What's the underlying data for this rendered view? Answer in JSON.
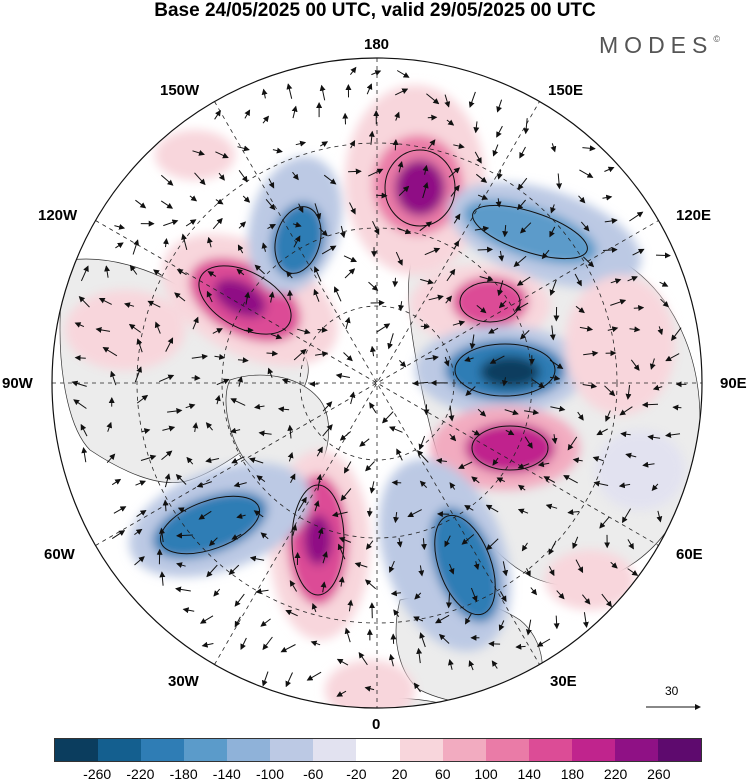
{
  "title": "Base 24/05/2025 00 UTC, valid 29/05/2025 00 UTC",
  "brand": "MODES",
  "brand_mark": "©",
  "longitude_labels": {
    "lon_180": "180",
    "lon_150e": "150E",
    "lon_120e": "120E",
    "lon_90e": "90E",
    "lon_60e": "60E",
    "lon_30e": "30E",
    "lon_0": "0",
    "lon_30w": "30W",
    "lon_60w": "60W",
    "lon_90w": "90W",
    "lon_120w": "120W",
    "lon_150w": "150W"
  },
  "reference_vector_label": "30",
  "colorbar": {
    "ticks": [
      "-260",
      "-220",
      "-180",
      "-140",
      "-100",
      "-60",
      "-20",
      "20",
      "60",
      "100",
      "140",
      "180",
      "220",
      "260"
    ],
    "colors": [
      "#0b3d5e",
      "#145f8f",
      "#2f7db5",
      "#5b9bca",
      "#8fb2d9",
      "#bcc9e4",
      "#e2e2f0",
      "#ffffff",
      "#f8d6dc",
      "#f2abc0",
      "#ea7ba7",
      "#dc4c96",
      "#c0248d",
      "#8f1185",
      "#5e0a6e"
    ]
  },
  "colors": {
    "land": "#ececec",
    "background": "#ffffff"
  },
  "anomalies": [
    {
      "name": "anom-positive-180",
      "value": 240
    },
    {
      "name": "anom-negative-150e",
      "value": -180
    },
    {
      "name": "anom-positive-120e",
      "value": 180
    },
    {
      "name": "anom-negative-90e",
      "value": -260
    },
    {
      "name": "anom-positive-75e",
      "value": 220
    },
    {
      "name": "anom-negative-30e",
      "value": -200
    },
    {
      "name": "anom-positive-15w",
      "value": 240
    },
    {
      "name": "anom-negative-45w",
      "value": -220
    },
    {
      "name": "anom-positive-110w",
      "value": 240
    },
    {
      "name": "anom-negative-150w",
      "value": -200
    }
  ]
}
